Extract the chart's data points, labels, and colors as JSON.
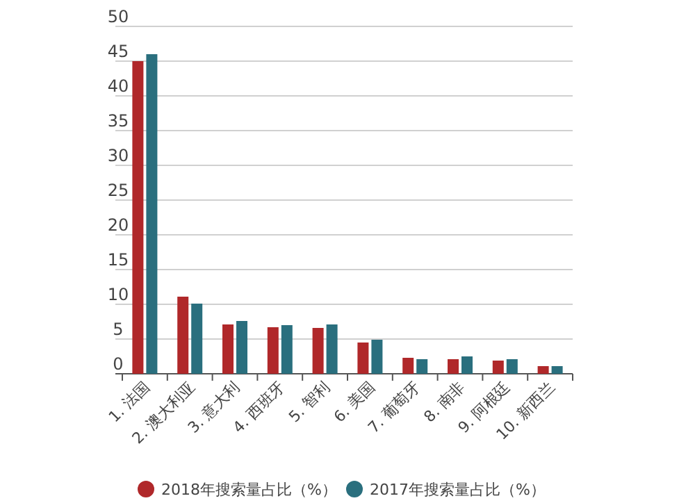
{
  "chart_data": {
    "type": "bar",
    "categories": [
      "1. 法国",
      "2. 澳大利亚",
      "3. 意大利",
      "4. 西班牙",
      "5. 智利",
      "6. 美国",
      "7. 葡萄牙",
      "8. 南非",
      "9. 阿根廷",
      "10. 新西兰"
    ],
    "series": [
      {
        "name": "2018年搜索量占比（%）",
        "color": "#b0282a",
        "values": [
          45,
          11.1,
          7.1,
          6.7,
          6.6,
          4.5,
          2.3,
          2.1,
          1.9,
          1.1
        ]
      },
      {
        "name": "2017年搜索量占比（%）",
        "color": "#2a6f7e",
        "values": [
          46,
          10.1,
          7.6,
          7.0,
          7.1,
          4.9,
          2.1,
          2.5,
          2.1,
          1.1
        ]
      }
    ],
    "ylim": [
      0,
      50
    ],
    "yticks": [
      0,
      5,
      10,
      15,
      20,
      25,
      30,
      35,
      40,
      45,
      50
    ],
    "grid": "y",
    "legend": "bottom"
  }
}
